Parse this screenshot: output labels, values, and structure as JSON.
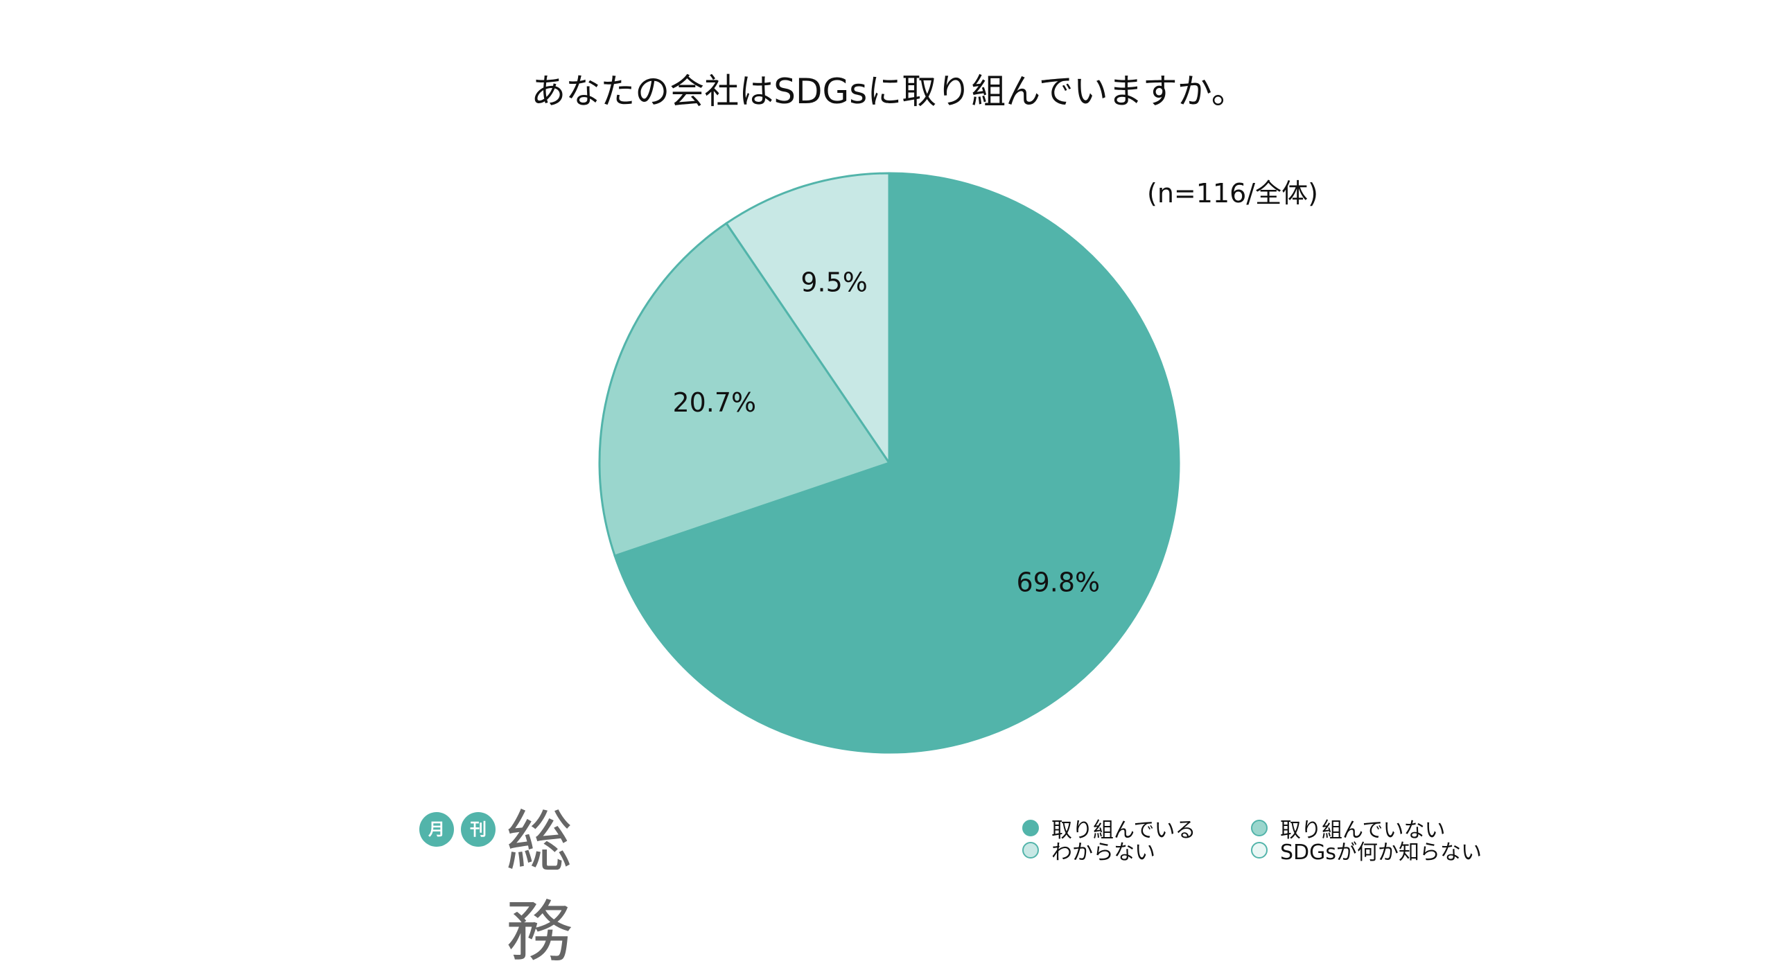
{
  "title": "あなたの会社はSDGsに取り組んでいますか。",
  "note": "(n=116/全体)",
  "logo": {
    "badge1": "月",
    "badge2": "刊",
    "main": "総務"
  },
  "chart_data": {
    "type": "pie",
    "title": "あなたの会社はSDGsに取り組んでいますか。",
    "categories": [
      "取り組んでいる",
      "取り組んでいない",
      "わからない",
      "SDGsが何か知らない"
    ],
    "values": [
      69.8,
      20.7,
      9.5,
      0.0
    ],
    "labels": [
      "69.8%",
      "20.7%",
      "9.5%",
      ""
    ],
    "colors": [
      "#52b4aa",
      "#9ad6cd",
      "#c8e8e5",
      "#eaf7f5"
    ],
    "legend": "bottom-right",
    "start": "top",
    "direction": "clockwise"
  }
}
